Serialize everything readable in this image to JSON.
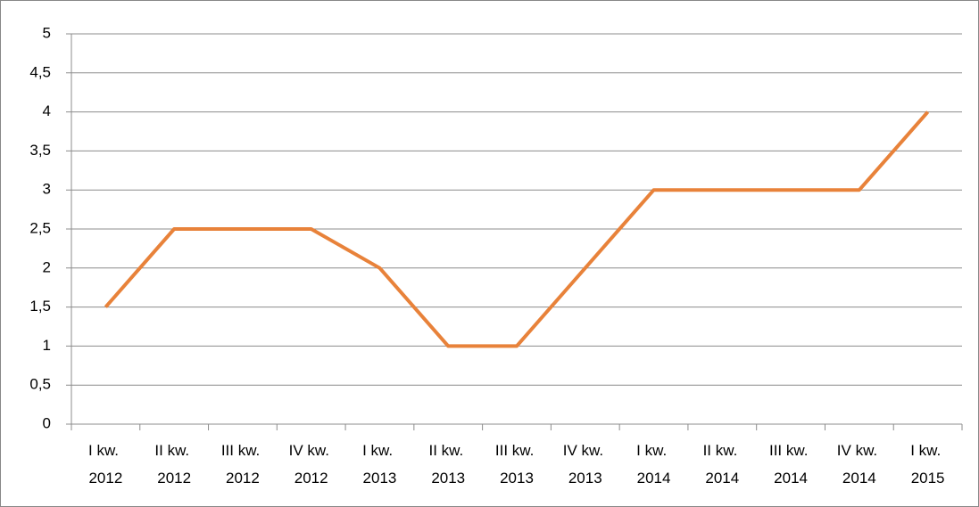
{
  "chart_data": {
    "type": "line",
    "categories": [
      "I kw. 2012",
      "II kw. 2012",
      "III kw. 2012",
      "IV kw. 2012",
      "I kw. 2013",
      "II kw. 2013",
      "III kw. 2013",
      "IV kw. 2013",
      "I kw. 2014",
      "II kw. 2014",
      "III kw. 2014",
      "IV kw. 2014",
      "I kw. 2015"
    ],
    "values": [
      1.5,
      2.5,
      2.5,
      2.5,
      2,
      1,
      1,
      2,
      3,
      3,
      3,
      3,
      4
    ],
    "color": "#e8823a",
    "ylim": [
      0,
      5
    ],
    "yticks": [
      0,
      {
        "value": 0.5,
        "label": "0,5"
      },
      1,
      {
        "value": 1.5,
        "label": "1,5"
      },
      2,
      {
        "value": 2.5,
        "label": "2,5"
      },
      3,
      {
        "value": 3.5,
        "label": "3,5"
      },
      4,
      {
        "value": 4.5,
        "label": "4,5"
      },
      5
    ],
    "grid": true
  }
}
